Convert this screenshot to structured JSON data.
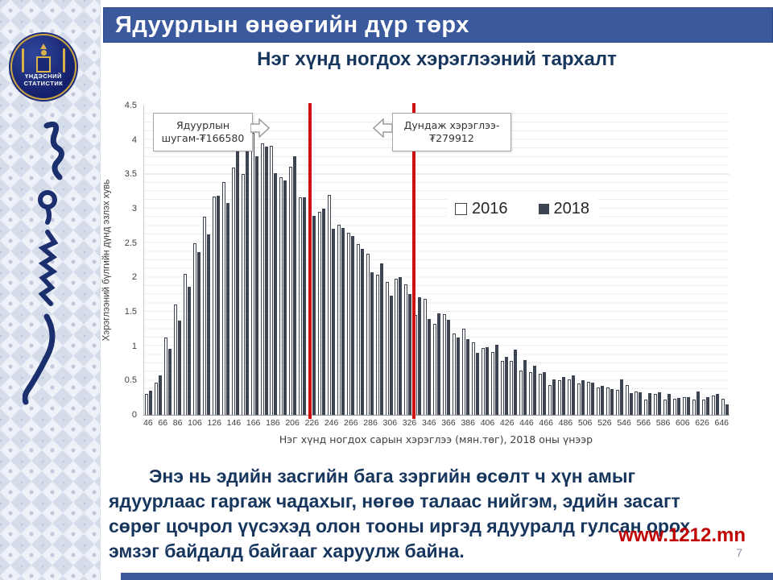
{
  "slide": {
    "header_title": "Ядуурлын  өнөөгийн дүр төрх",
    "chart_title": "Нэг хүнд ногдох хэрэглээний тархалт",
    "body_text": "Энэ нь эдийн засгийн бага зэргийн өсөлт ч хүн амыг ядуурлаас гаргаж чадахыг, нөгөө талаас нийгэм, эдийн засагт сөрөг цочрол үүсэхэд олон тооны иргэд ядууралд гулсан орох эмзэг байдалд байгааг харуулж байна.",
    "footer_link": "www.1212.mn",
    "page_number": "7"
  },
  "sidebar": {
    "logo_line1": "ҮНДЭСНИЙ",
    "logo_line2": "СТАТИСТИК"
  },
  "annotations": {
    "poverty_line": {
      "label": "Ядуурлын шугам-₮166580",
      "line1": "Ядуурлын",
      "line2": "шугам-₮166580",
      "x_value": 166.58,
      "color": "#cf1010"
    },
    "mean_line": {
      "label": "Дундаж хэрэглээ-₮279912",
      "line1": "Дундаж хэрэглээ-",
      "line2": "₮279912",
      "x_value": 279.912,
      "color": "#cf1010"
    }
  },
  "chart_data": {
    "type": "bar",
    "title": "Нэг хүнд ногдох хэрэглээний тархалт",
    "xlabel": "Нэг хүнд ногдох сарын  хэрэглээ (мян.төг),  2018  оны  үнээр",
    "ylabel": "Хэрэглээний бүлгийн дүнд эзлэх хувь",
    "ylim": [
      0,
      4.5
    ],
    "grid": true,
    "legend_position": "middle-right",
    "y_ticks": [
      "0",
      "0.5",
      "1",
      "1.5",
      "2",
      "2.5",
      "3",
      "3.5",
      "4",
      "4.5"
    ],
    "x_tick_labels": [
      "46",
      "66",
      "86",
      "106",
      "126",
      "146",
      "166",
      "186",
      "206",
      "226",
      "246",
      "266",
      "286",
      "306",
      "326",
      "346",
      "366",
      "386",
      "406",
      "426",
      "446",
      "466",
      "486",
      "506",
      "526",
      "546",
      "566",
      "586",
      "606",
      "626",
      "646"
    ],
    "categories": [
      46,
      56,
      66,
      76,
      86,
      96,
      106,
      116,
      126,
      136,
      146,
      156,
      166,
      176,
      186,
      196,
      206,
      216,
      226,
      236,
      246,
      256,
      266,
      276,
      286,
      296,
      306,
      316,
      326,
      336,
      346,
      356,
      366,
      376,
      386,
      396,
      406,
      416,
      426,
      436,
      446,
      456,
      466,
      476,
      486,
      496,
      506,
      516,
      526,
      536,
      546,
      556,
      566,
      576,
      586,
      596,
      606,
      616,
      626,
      636,
      646
    ],
    "series": [
      {
        "name": "2016",
        "fill": "#ffffff",
        "stroke": "#3d4451",
        "values": [
          0.3,
          0.47,
          1.13,
          1.61,
          2.05,
          2.5,
          2.88,
          3.18,
          3.39,
          3.6,
          3.5,
          4.1,
          3.95,
          3.92,
          3.46,
          3.61,
          3.16,
          2.9,
          2.95,
          3.2,
          2.77,
          2.65,
          2.48,
          2.34,
          2.04,
          1.94,
          1.98,
          1.9,
          1.45,
          1.69,
          1.33,
          1.47,
          1.19,
          1.25,
          1.05,
          0.97,
          0.92,
          0.78,
          0.78,
          0.65,
          0.62,
          0.6,
          0.44,
          0.5,
          0.52,
          0.46,
          0.48,
          0.4,
          0.4,
          0.36,
          0.44,
          0.34,
          0.22,
          0.31,
          0.22,
          0.24,
          0.26,
          0.22,
          0.22,
          0.28,
          0.24
        ]
      },
      {
        "name": "2018",
        "fill": "#3d4451",
        "stroke": "#3d4451",
        "values": [
          0.35,
          0.57,
          0.96,
          1.37,
          1.86,
          2.37,
          2.62,
          3.19,
          3.08,
          3.85,
          3.93,
          3.76,
          3.9,
          3.52,
          3.41,
          3.76,
          3.17,
          2.89,
          3.0,
          2.71,
          2.72,
          2.6,
          2.41,
          2.07,
          2.2,
          1.74,
          2.0,
          1.76,
          1.71,
          1.4,
          1.48,
          1.38,
          1.12,
          1.1,
          0.9,
          0.98,
          1.02,
          0.85,
          0.95,
          0.8,
          0.72,
          0.62,
          0.52,
          0.55,
          0.57,
          0.5,
          0.47,
          0.42,
          0.38,
          0.52,
          0.32,
          0.33,
          0.32,
          0.33,
          0.3,
          0.25,
          0.26,
          0.34,
          0.26,
          0.3,
          0.15
        ]
      }
    ]
  }
}
